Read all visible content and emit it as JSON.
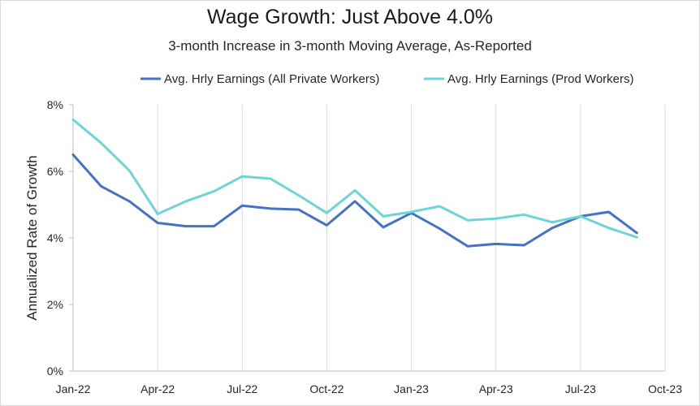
{
  "chart_data": {
    "type": "line",
    "title": "Wage Growth: Just Above 4.0%",
    "subtitle": "3-month Increase in 3-month Moving Average, As-Reported",
    "xlabel": "",
    "ylabel": "Annualized Rate of Growth",
    "ylim": [
      0,
      8
    ],
    "yticks": [
      0,
      2,
      4,
      6,
      8
    ],
    "ytick_labels": [
      "0%",
      "2%",
      "4%",
      "6%",
      "8%"
    ],
    "xlim": [
      "2022-01",
      "2023-10"
    ],
    "xticks": [
      "2022-01",
      "2022-04",
      "2022-07",
      "2022-10",
      "2023-01",
      "2023-04",
      "2023-07",
      "2023-10"
    ],
    "xtick_labels": [
      "Jan-22",
      "Apr-22",
      "Jul-22",
      "Oct-22",
      "Jan-23",
      "Apr-23",
      "Jul-23",
      "Oct-23"
    ],
    "grid": "vertical",
    "legend_position": "top",
    "x": [
      "2022-01",
      "2022-02",
      "2022-03",
      "2022-04",
      "2022-05",
      "2022-06",
      "2022-07",
      "2022-08",
      "2022-09",
      "2022-10",
      "2022-11",
      "2022-12",
      "2023-01",
      "2023-02",
      "2023-03",
      "2023-04",
      "2023-05",
      "2023-06",
      "2023-07",
      "2023-08",
      "2023-09"
    ],
    "series": [
      {
        "name": "Avg. Hrly Earnings (All Private Workers)",
        "color": "#4472c4",
        "values": [
          6.5,
          5.55,
          5.1,
          4.45,
          4.35,
          4.35,
          4.97,
          4.88,
          4.85,
          4.38,
          5.1,
          4.32,
          4.75,
          4.28,
          3.75,
          3.82,
          3.78,
          4.3,
          4.65,
          4.78,
          4.15
        ]
      },
      {
        "name": "Avg. Hrly Earnings (Prod Workers)",
        "color": "#6dd4d8",
        "values": [
          7.55,
          6.85,
          6.02,
          4.72,
          5.1,
          5.4,
          5.85,
          5.78,
          5.28,
          4.75,
          5.43,
          4.65,
          4.78,
          4.95,
          4.53,
          4.58,
          4.7,
          4.47,
          4.65,
          4.3,
          4.02
        ]
      }
    ]
  }
}
